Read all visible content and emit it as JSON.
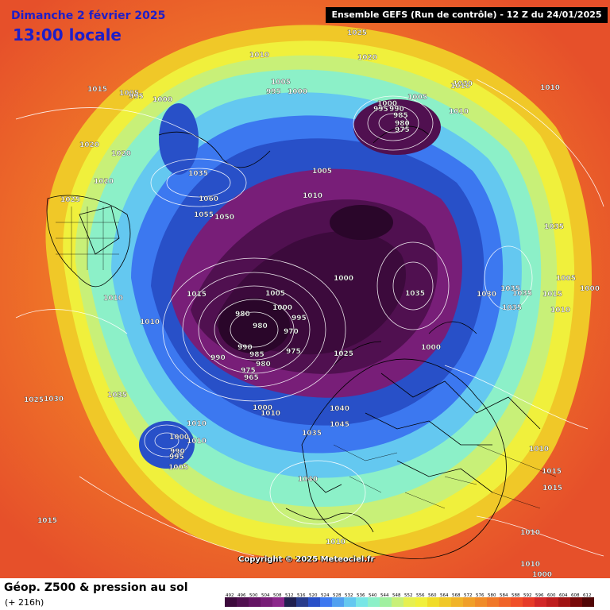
{
  "header": {
    "day": "Dimanche 2 février 2025",
    "local_time": "13:00 locale",
    "model_run": "Ensemble GEFS  (Run de contrôle)  -  12 Z du 24/01/2025"
  },
  "copyright": "Copyright © 2025 Meteociel.fr",
  "footer": {
    "title": "Géop. Z500 & pression au sol",
    "lead": "(+ 216h)"
  },
  "scale": {
    "values": [
      "492",
      "496",
      "500",
      "504",
      "508",
      "512",
      "516",
      "520",
      "524",
      "528",
      "532",
      "536",
      "540",
      "544",
      "548",
      "552",
      "556",
      "560",
      "564",
      "568",
      "572",
      "576",
      "580",
      "584",
      "588",
      "592",
      "596",
      "600",
      "604",
      "608",
      "612"
    ],
    "colors": [
      "#3c0a3c",
      "#501050",
      "#641464",
      "#781e78",
      "#8c288c",
      "#202050",
      "#283c8c",
      "#2850c8",
      "#3c78f0",
      "#50a0f0",
      "#64c8f0",
      "#78e6e6",
      "#8cf0c8",
      "#a0f0a0",
      "#c8f078",
      "#e6f050",
      "#f0f03c",
      "#f0dc28",
      "#f0c828",
      "#f0b428",
      "#f0a028",
      "#f08c28",
      "#f07828",
      "#f06428",
      "#f05028",
      "#e63c28",
      "#d22828",
      "#be1e1e",
      "#a01414",
      "#780a0a",
      "#500505"
    ]
  },
  "isobar_labels": [
    {
      "t": "1025"
    },
    {
      "t": "1020"
    },
    {
      "t": "1010"
    },
    {
      "t": "1005"
    },
    {
      "t": "995"
    },
    {
      "t": "1000"
    },
    {
      "t": "1005"
    },
    {
      "t": "995"
    },
    {
      "t": "1000"
    },
    {
      "t": "1020"
    },
    {
      "t": "1020"
    },
    {
      "t": "1020"
    },
    {
      "t": "1025"
    },
    {
      "t": "1035"
    },
    {
      "t": "1060"
    },
    {
      "t": "1055"
    },
    {
      "t": "1050"
    },
    {
      "t": "1005"
    },
    {
      "t": "1010"
    },
    {
      "t": "1010"
    },
    {
      "t": "1010"
    },
    {
      "t": "1000"
    },
    {
      "t": "1015"
    },
    {
      "t": "1005"
    },
    {
      "t": "980"
    },
    {
      "t": "1000"
    },
    {
      "t": "995"
    },
    {
      "t": "980"
    },
    {
      "t": "970"
    },
    {
      "t": "990"
    },
    {
      "t": "990"
    },
    {
      "t": "985"
    },
    {
      "t": "980"
    },
    {
      "t": "975"
    },
    {
      "t": "975"
    },
    {
      "t": "965"
    },
    {
      "t": "1025"
    },
    {
      "t": "1010"
    },
    {
      "t": "1035"
    },
    {
      "t": "1025"
    },
    {
      "t": "1030"
    },
    {
      "t": "1000"
    },
    {
      "t": "1010"
    },
    {
      "t": "1010"
    },
    {
      "t": "1040"
    },
    {
      "t": "1045"
    },
    {
      "t": "1035"
    },
    {
      "t": "1000"
    },
    {
      "t": "990"
    },
    {
      "t": "995"
    },
    {
      "t": "1005"
    },
    {
      "t": "1040"
    },
    {
      "t": "1015"
    },
    {
      "t": "1010"
    },
    {
      "t": "1015"
    },
    {
      "t": "1000"
    },
    {
      "t": "995"
    },
    {
      "t": "990"
    },
    {
      "t": "985"
    },
    {
      "t": "980"
    },
    {
      "t": "975"
    },
    {
      "t": "1005"
    },
    {
      "t": "1010"
    },
    {
      "t": "1010"
    },
    {
      "t": "1035"
    },
    {
      "t": "1035"
    },
    {
      "t": "1030"
    },
    {
      "t": "1035"
    },
    {
      "t": "1035"
    },
    {
      "t": "1035"
    },
    {
      "t": "1005"
    },
    {
      "t": "1015"
    },
    {
      "t": "1010"
    },
    {
      "t": "1000"
    },
    {
      "t": "1010"
    },
    {
      "t": "1015"
    },
    {
      "t": "1015"
    },
    {
      "t": "1010"
    },
    {
      "t": "1010"
    },
    {
      "t": "1000"
    },
    {
      "t": "1000"
    },
    {
      "t": "1015"
    },
    {
      "t": "1025"
    },
    {
      "t": "1030"
    },
    {
      "t": "1010"
    }
  ]
}
